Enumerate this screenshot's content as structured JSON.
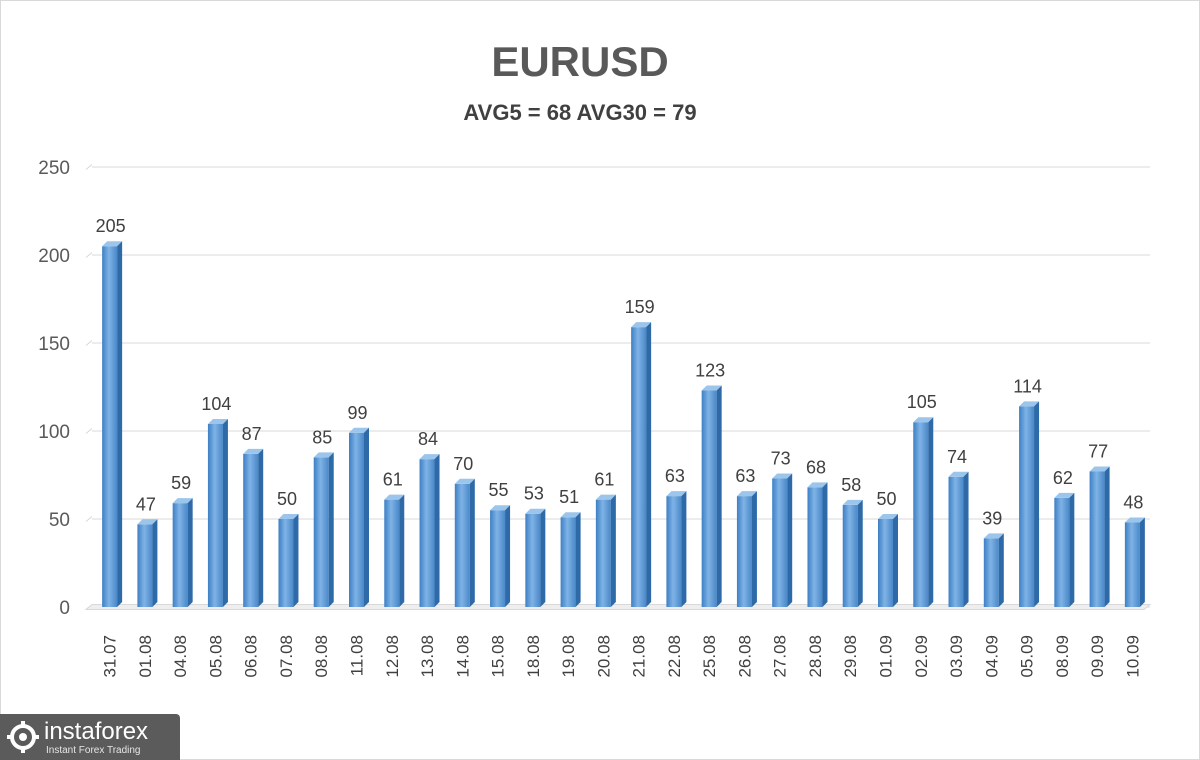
{
  "chart_data": {
    "type": "bar",
    "title": "EURUSD",
    "subtitle": "AVG5 = 68 AVG30 = 79",
    "xlabel": "",
    "ylabel": "",
    "ylim": [
      0,
      250
    ],
    "yticks": [
      0,
      50,
      100,
      150,
      200,
      250
    ],
    "grid": true,
    "legend": "none",
    "bar_color": "#5b9bd5",
    "categories": [
      "31.07",
      "01.08",
      "04.08",
      "05.08",
      "06.08",
      "07.08",
      "08.08",
      "11.08",
      "12.08",
      "13.08",
      "14.08",
      "15.08",
      "18.08",
      "19.08",
      "20.08",
      "21.08",
      "22.08",
      "25.08",
      "26.08",
      "27.08",
      "28.08",
      "29.08",
      "01.09",
      "02.09",
      "03.09",
      "04.09",
      "05.09",
      "08.09",
      "09.09",
      "10.09"
    ],
    "values": [
      205,
      47,
      59,
      104,
      87,
      50,
      85,
      99,
      61,
      84,
      70,
      55,
      53,
      51,
      61,
      159,
      63,
      123,
      63,
      73,
      68,
      58,
      50,
      105,
      74,
      39,
      114,
      62,
      77,
      48
    ]
  },
  "logo": {
    "name": "instaforex",
    "tagline": "Instant Forex Trading",
    "icon": "gear-icon"
  }
}
